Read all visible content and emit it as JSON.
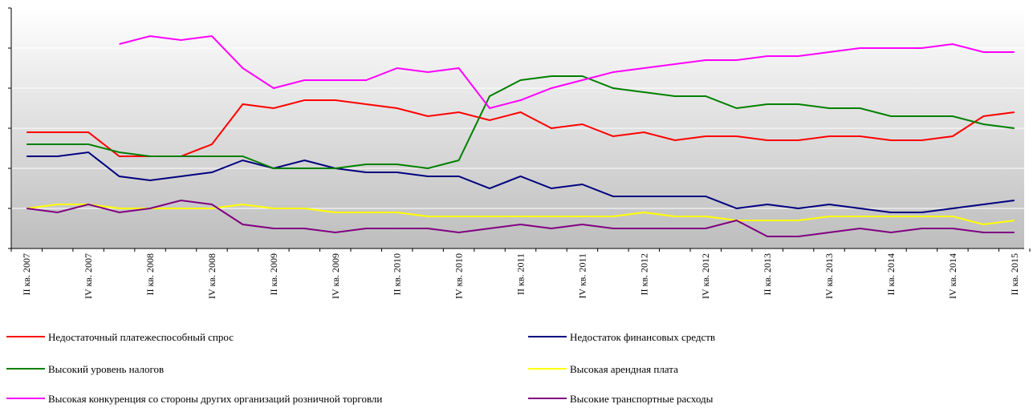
{
  "chart_data": {
    "type": "line",
    "categories": [
      "II кв. 2007",
      null,
      "IV кв. 2007",
      null,
      "II кв. 2008",
      null,
      "IV кв. 2008",
      null,
      "II кв. 2009",
      null,
      "IV кв. 2009",
      null,
      "II кв. 2010",
      null,
      "IV кв. 2010",
      null,
      "II кв. 2011",
      null,
      "IV кв. 2011",
      null,
      "II кв. 2012",
      null,
      "IV кв. 2012",
      null,
      "II кв. 2013",
      null,
      "IV кв. 2013",
      null,
      "II кв. 2014",
      null,
      "IV кв. 2014",
      null,
      "II кв. 2015"
    ],
    "series": [
      {
        "name": "Недостаточный платежеспособный спрос",
        "color": "#ff0000",
        "values": [
          29,
          29,
          29,
          23,
          23,
          23,
          26,
          36,
          35,
          37,
          37,
          36,
          35,
          33,
          34,
          32,
          34,
          30,
          31,
          28,
          29,
          27,
          28,
          28,
          27,
          27,
          28,
          28,
          27,
          27,
          28,
          33,
          34
        ]
      },
      {
        "name": "Недостаток финансовых средств",
        "color": "#000080",
        "values": [
          23,
          23,
          24,
          18,
          17,
          18,
          19,
          22,
          20,
          22,
          20,
          19,
          19,
          18,
          18,
          15,
          18,
          15,
          16,
          13,
          13,
          13,
          13,
          10,
          11,
          10,
          11,
          10,
          9,
          9,
          10,
          11,
          12
        ]
      },
      {
        "name": "Высокий уровень налогов",
        "color": "#008000",
        "values": [
          26,
          26,
          26,
          24,
          23,
          23,
          23,
          23,
          20,
          20,
          20,
          21,
          21,
          20,
          22,
          38,
          42,
          43,
          43,
          40,
          39,
          38,
          38,
          35,
          36,
          36,
          35,
          35,
          33,
          33,
          33,
          31,
          30
        ]
      },
      {
        "name": "Высокая арендная плата",
        "color": "#ffff00",
        "values": [
          10,
          11,
          11,
          10,
          10,
          10,
          10,
          11,
          10,
          10,
          9,
          9,
          9,
          8,
          8,
          8,
          8,
          8,
          8,
          8,
          9,
          8,
          8,
          7,
          7,
          7,
          8,
          8,
          8,
          8,
          8,
          6,
          7
        ]
      },
      {
        "name": "Высокая конкуренция со стороны других организаций розничной торговли",
        "color": "#ff00ff",
        "values": [
          null,
          null,
          null,
          51,
          53,
          52,
          53,
          45,
          40,
          42,
          42,
          42,
          45,
          44,
          45,
          35,
          37,
          40,
          42,
          44,
          45,
          46,
          47,
          47,
          48,
          48,
          49,
          50,
          50,
          50,
          51,
          49,
          49
        ]
      },
      {
        "name": "Высокие транспортные расходы",
        "color": "#800080",
        "values": [
          10,
          9,
          11,
          9,
          10,
          12,
          11,
          6,
          5,
          5,
          4,
          5,
          5,
          5,
          4,
          5,
          6,
          5,
          6,
          5,
          5,
          5,
          5,
          7,
          3,
          3,
          4,
          5,
          4,
          5,
          5,
          4,
          4
        ]
      }
    ],
    "ylim": [
      0,
      60
    ],
    "yticks": [
      0,
      10,
      20,
      30,
      40,
      50,
      60
    ],
    "grid": true
  }
}
